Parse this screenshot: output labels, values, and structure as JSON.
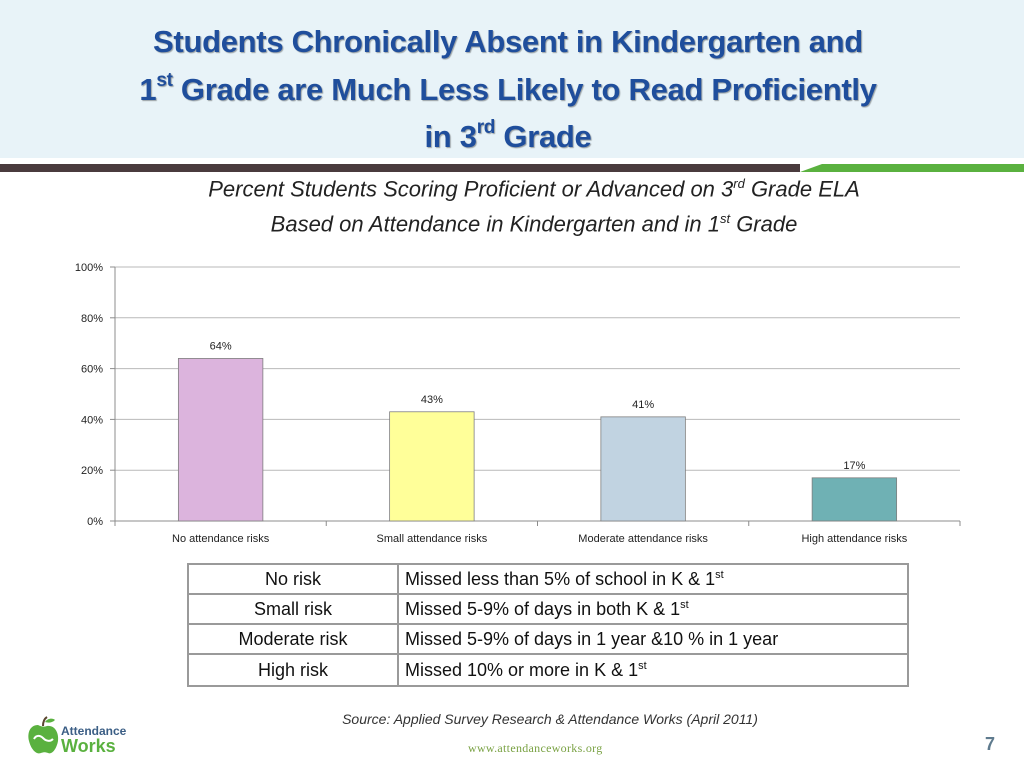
{
  "header": {
    "title_line1": "Students Chronically Absent in Kindergarten and",
    "title_line2_pre": "1",
    "title_line2_sup": "st",
    "title_line2_post": " Grade are Much Less Likely to Read Proficiently",
    "title_line3_pre": "in 3",
    "title_line3_sup": "rd",
    "title_line3_post": " Grade"
  },
  "chart_title": {
    "line1_pre": "Percent Students Scoring Proficient or Advanced on 3",
    "line1_sup": "rd",
    "line1_post": " Grade ELA",
    "line2_pre": "Based on Attendance in Kindergarten and in 1",
    "line2_sup": "st",
    "line2_post": " Grade"
  },
  "chart_data": {
    "type": "bar",
    "categories": [
      "No attendance risks",
      "Small attendance risks",
      "Moderate attendance risks",
      "High attendance risks"
    ],
    "values": [
      64,
      43,
      41,
      17
    ],
    "data_labels": [
      "64%",
      "43%",
      "41%",
      "17%"
    ],
    "colors": [
      "#dcb4dd",
      "#ffff99",
      "#c1d3e1",
      "#6fb1b4"
    ],
    "ylim": [
      0,
      100
    ],
    "yticks": [
      0,
      20,
      40,
      60,
      80,
      100
    ],
    "ytick_labels": [
      "0%",
      "20%",
      "40%",
      "60%",
      "80%",
      "100%"
    ],
    "grid": true,
    "legend": "none"
  },
  "legend_table": [
    {
      "risk": "No risk",
      "desc_pre": "Missed less than 5% of school in K & 1",
      "desc_sup": "st"
    },
    {
      "risk": "Small risk",
      "desc_pre": "Missed  5-9% of days in both K & 1",
      "desc_sup": "st"
    },
    {
      "risk": "Moderate risk",
      "desc_pre": "Missed 5-9% of days in 1 year &10 % in 1 year",
      "desc_sup": ""
    },
    {
      "risk": "High risk",
      "desc_pre": "Missed 10% or more in K & 1",
      "desc_sup": "st"
    }
  ],
  "footer": {
    "source": "Source: Applied Survey Research & Attendance Works (April 2011)",
    "website": "www.attendanceworks.org",
    "page_number": "7",
    "logo_line1": "Attendance",
    "logo_line2": "Works"
  },
  "colors": {
    "title": "#1f4e9c",
    "rule_dark": "#4a3b3d",
    "rule_green": "#5ab13f",
    "header_bg": "#e8f3f8"
  }
}
